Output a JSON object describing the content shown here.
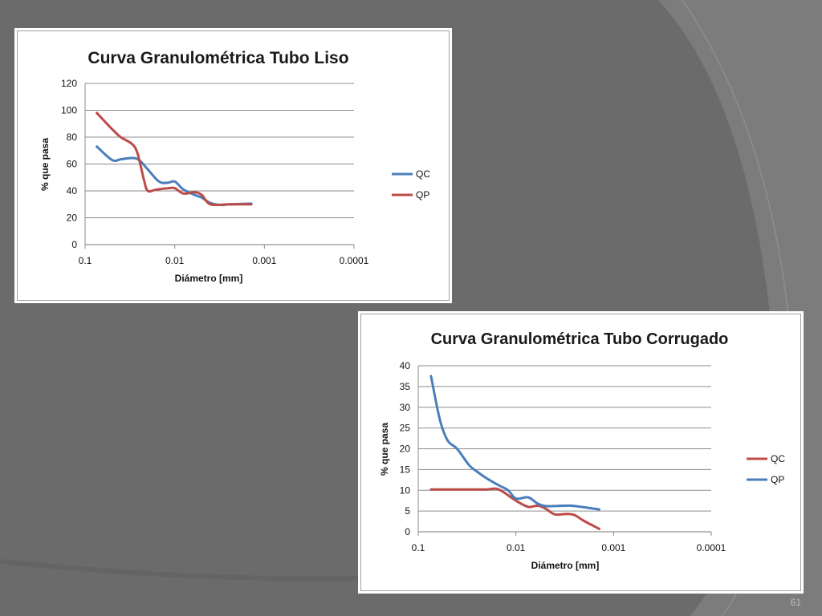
{
  "slide": {
    "number": "61"
  },
  "chart_data": [
    {
      "type": "line",
      "title": "Curva Granulométrica Tubo Liso",
      "xlabel": "Diámetro [mm]",
      "ylabel": "% que pasa",
      "x_scale": "log-reversed",
      "xlim": [
        0.1,
        0.0001
      ],
      "ylim": [
        0,
        120
      ],
      "x_ticks": [
        "0.1",
        "0.01",
        "0.001",
        "0.0001"
      ],
      "y_ticks": [
        "0",
        "20",
        "40",
        "60",
        "80",
        "100",
        "120"
      ],
      "grid": true,
      "legend_position": "right",
      "series": [
        {
          "name": "QC",
          "color": "#4a7ebb",
          "x": [
            0.074,
            0.05,
            0.04,
            0.03,
            0.025,
            0.02,
            0.015,
            0.012,
            0.01,
            0.008,
            0.006,
            0.005,
            0.004,
            0.003,
            0.0025,
            0.0014
          ],
          "y": [
            73,
            63,
            63.5,
            64.5,
            63,
            56,
            47,
            46,
            47,
            41,
            37,
            35,
            31,
            29.5,
            30,
            30.5
          ]
        },
        {
          "name": "QP",
          "color": "#be4b48",
          "x": [
            0.074,
            0.05,
            0.04,
            0.03,
            0.026,
            0.022,
            0.02,
            0.016,
            0.012,
            0.01,
            0.008,
            0.006,
            0.005,
            0.004,
            0.0025,
            0.0014
          ],
          "y": [
            98,
            86,
            80,
            75,
            68,
            48,
            40,
            41,
            42,
            42,
            38,
            39,
            37,
            30,
            30,
            30
          ]
        }
      ]
    },
    {
      "type": "line",
      "title": "Curva Granulométrica Tubo Corrugado",
      "xlabel": "Diámetro [mm]",
      "ylabel": "% que pasa",
      "x_scale": "log-reversed",
      "xlim": [
        0.1,
        0.0001
      ],
      "ylim": [
        0,
        40
      ],
      "x_ticks": [
        "0.1",
        "0.01",
        "0.001",
        "0.0001"
      ],
      "y_ticks": [
        "0",
        "5",
        "10",
        "15",
        "20",
        "25",
        "30",
        "35",
        "40"
      ],
      "grid": true,
      "legend_position": "right",
      "series": [
        {
          "name": "QC",
          "color": "#be4b48",
          "x": [
            0.074,
            0.05,
            0.03,
            0.02,
            0.015,
            0.01,
            0.0075,
            0.006,
            0.005,
            0.004,
            0.003,
            0.0025,
            0.002,
            0.0014
          ],
          "y": [
            10.2,
            10.2,
            10.2,
            10.2,
            10.2,
            7.5,
            6,
            6.3,
            5.6,
            4.2,
            4.3,
            4,
            2.6,
            0.7
          ]
        },
        {
          "name": "QP",
          "color": "#4a7ebb",
          "x": [
            0.074,
            0.06,
            0.05,
            0.04,
            0.03,
            0.025,
            0.02,
            0.015,
            0.012,
            0.01,
            0.0075,
            0.006,
            0.005,
            0.004,
            0.003,
            0.0025,
            0.0014
          ],
          "y": [
            37.5,
            27,
            22,
            20,
            16,
            14.5,
            12.9,
            11.2,
            10,
            8,
            8.3,
            6.8,
            6.2,
            6.2,
            6.3,
            6.2,
            5.4
          ]
        }
      ]
    }
  ]
}
